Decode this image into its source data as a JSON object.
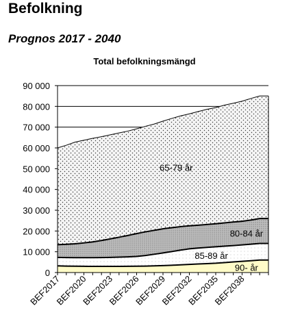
{
  "header": {
    "title": "Befolkning",
    "subtitle": "Prognos 2017 - 2040"
  },
  "colors": {
    "band_65_79": "#f2f2f2",
    "band_80_84": "#b8b8b8",
    "band_85_89": "#ffffff",
    "band_90": "#fffbc8",
    "line": "#000000",
    "gridline": "#000000"
  },
  "chart_data": {
    "type": "area",
    "stacked": true,
    "title": "Total befolkningsmängd",
    "xlabel": "",
    "ylabel": "",
    "ylim": [
      0,
      90000
    ],
    "yticks": [
      0,
      10000,
      20000,
      30000,
      40000,
      50000,
      60000,
      70000,
      80000,
      90000
    ],
    "ytick_labels": [
      "0",
      "10 000",
      "20 000",
      "30 000",
      "40 000",
      "50 000",
      "60 000",
      "70 000",
      "80 000",
      "90 000"
    ],
    "grid": "horizontal",
    "legend": "none (labels inside areas)",
    "categories": [
      "BEF2017",
      "BEF2018",
      "BEF2019",
      "BEF2020",
      "BEF2021",
      "BEF2022",
      "BEF2023",
      "BEF2024",
      "BEF2025",
      "BEF2026",
      "BEF2027",
      "BEF2028",
      "BEF2029",
      "BEF2030",
      "BEF2031",
      "BEF2032",
      "BEF2033",
      "BEF2034",
      "BEF2035",
      "BEF2036",
      "BEF2037",
      "BEF2038",
      "BEF2039",
      "BEF2040"
    ],
    "xtick_labels": [
      "BEF2017",
      "BEF2020",
      "BEF2023",
      "BEF2026",
      "BEF2029",
      "BEF2032",
      "BEF2035",
      "BEF2038"
    ],
    "series": [
      {
        "name": "90- år",
        "values": [
          3200,
          3100,
          3050,
          3000,
          2950,
          2950,
          2950,
          2950,
          3000,
          3050,
          3100,
          3200,
          3350,
          3500,
          3700,
          3900,
          4100,
          4300,
          4500,
          4800,
          5100,
          5400,
          5700,
          6000
        ]
      },
      {
        "name": "85-89 år",
        "values": [
          4100,
          4100,
          4100,
          4150,
          4200,
          4250,
          4350,
          4450,
          4550,
          4700,
          5100,
          5600,
          6100,
          6600,
          7100,
          7500,
          7700,
          7800,
          7900,
          7900,
          7900,
          7900,
          7950,
          8000
        ]
      },
      {
        "name": "80-84 år",
        "values": [
          6100,
          6400,
          6700,
          7100,
          7600,
          8200,
          8900,
          9600,
          10300,
          11000,
          11400,
          11500,
          11600,
          11500,
          11300,
          11100,
          11000,
          11000,
          11100,
          11200,
          11300,
          11400,
          11600,
          12000
        ]
      },
      {
        "name": "65-79 år",
        "values": [
          46600,
          47700,
          48950,
          49450,
          49850,
          50000,
          50100,
          50200,
          50250,
          50450,
          50800,
          51200,
          51850,
          52600,
          53300,
          53900,
          54700,
          55500,
          55900,
          56700,
          57200,
          57800,
          58550,
          59000
        ]
      }
    ]
  }
}
